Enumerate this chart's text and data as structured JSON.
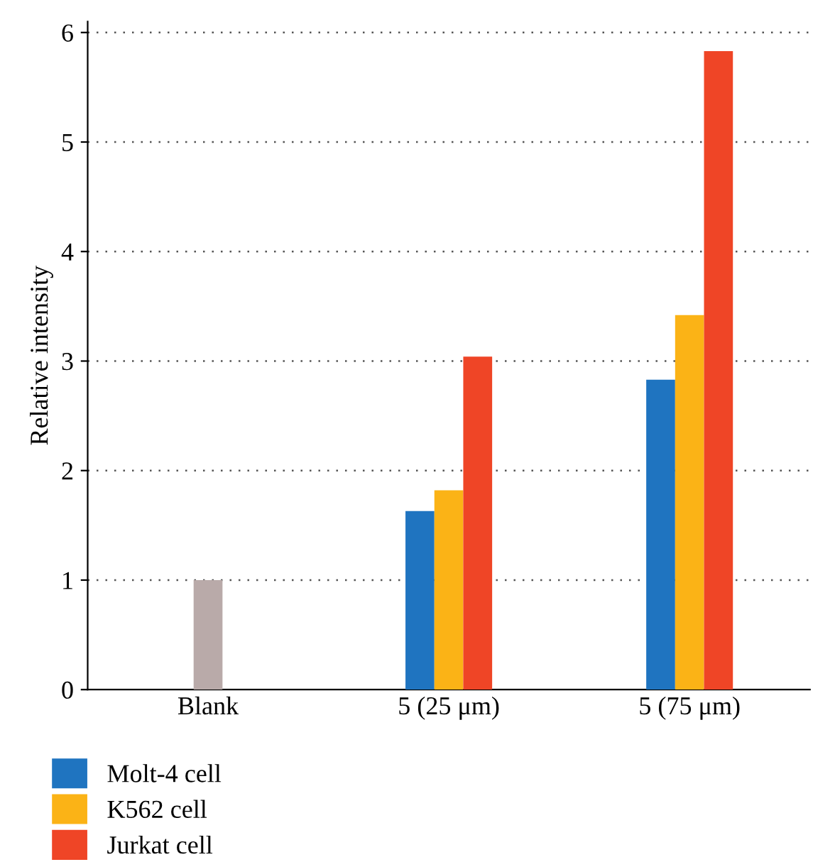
{
  "chart_data": {
    "type": "bar",
    "ylabel": "Relative intensity",
    "categories": [
      "Blank",
      "5 (25 μm)",
      "5 (75 μm)"
    ],
    "series": [
      {
        "color": "#b9aaa9",
        "values": [
          1.0,
          null,
          null
        ]
      },
      {
        "name": "Molt-4 cell",
        "color": "#1f74c0",
        "values": [
          null,
          1.63,
          2.83
        ]
      },
      {
        "name": "K562 cell",
        "color": "#fbb316",
        "values": [
          null,
          1.82,
          3.42
        ]
      },
      {
        "name": "Jurkat cell",
        "color": "#ef4526",
        "values": [
          null,
          3.04,
          5.83
        ]
      }
    ],
    "ylim": [
      0,
      6.1
    ],
    "yticks": [
      0,
      1,
      2,
      3,
      4,
      5,
      6
    ],
    "grid": "y",
    "legend": "bottom left"
  }
}
